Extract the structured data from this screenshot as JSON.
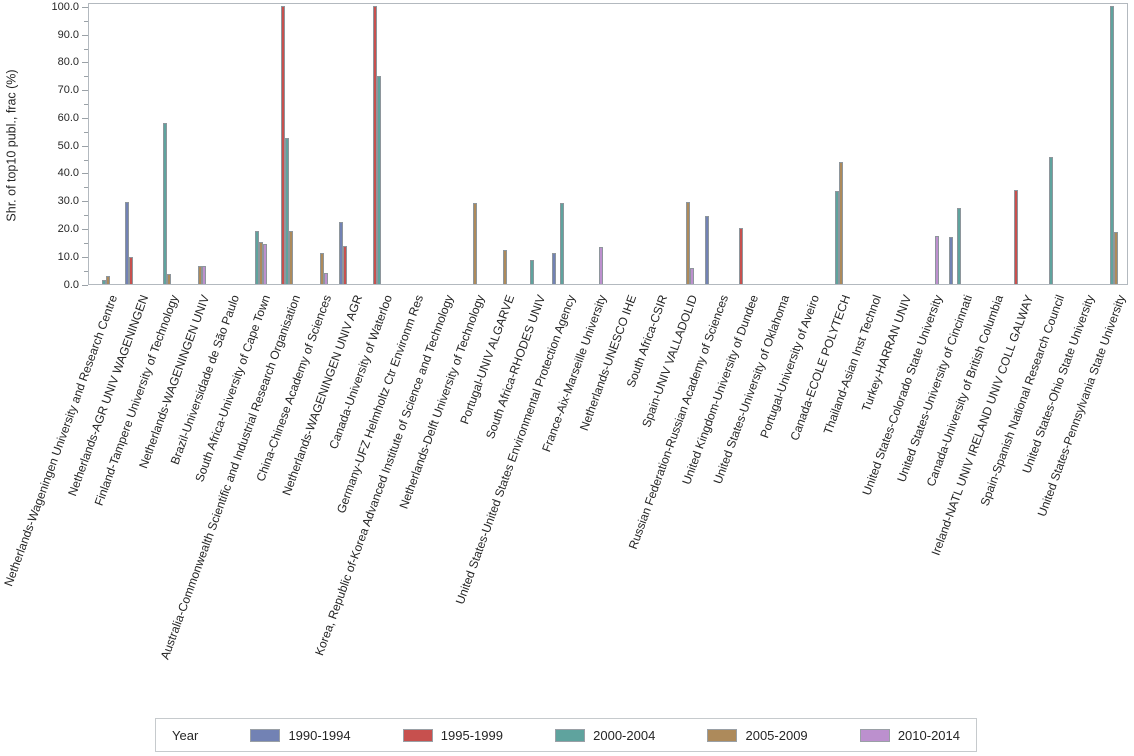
{
  "chart_data": {
    "type": "bar",
    "title": "",
    "ylabel": "Shr. of top10 publ., frac (%)",
    "xlabel": "",
    "ylim": [
      0,
      100
    ],
    "ytick_labels": [
      "0.0",
      "10.0",
      "20.0",
      "30.0",
      "40.0",
      "50.0",
      "60.0",
      "70.0",
      "80.0",
      "90.0",
      "100.0"
    ],
    "grid": false,
    "legend_position": "bottom",
    "legend_title": "Year",
    "categories": [
      "Netherlands-Wageningen University and Research Centre",
      "Netherlands-AGR UNIV WAGENINGEN",
      "Finland-Tampere University of Technology",
      "Netherlands-WAGENINGEN UNIV",
      "Brazil-Universidade de São Paulo",
      "South Africa-University of Cape Town",
      "Australia-Commonwealth Scientific and Industrial Research Organisation",
      "China-Chinese Academy of Sciences",
      "Netherlands-WAGENINGEN UNIV AGR",
      "Canada-University of Waterloo",
      "Germany-UFZ Helmholtz Ctr Environm Res",
      "Korea, Republic of-Korea Advanced Institute of Science and Technology",
      "Netherlands-Delft University of Technology",
      "Portugal-UNIV ALGARVE",
      "South Africa-RHODES UNIV",
      "United States-United States Environmental Protection Agency",
      "France-Aix-Marseille University",
      "Netherlands-UNESCO IHE",
      "South Africa-CSIR",
      "Spain-UNIV VALLADOLID",
      "Russian Federation-Russian Academy of Sciences",
      "United Kingdom-University of Dundee",
      "United States-University of Oklahoma",
      "Portugal-University of Aveiro",
      "Canada-ECOLE POLYTECH",
      "Thailand-Asian Inst Technol",
      "Turkey-HARRAN UNIV",
      "United States-Colorado State University",
      "United States-University of Cincinnati",
      "Canada-University of British Columbia",
      "Ireland-NATL UNIV IRELAND UNIV COLL GALWAY",
      "Spain-Spanish National Research Council",
      "United States-Ohio State University",
      "United States-Pennsylvania State University"
    ],
    "series": [
      {
        "name": "1990-1994",
        "color": "#7282B4",
        "values": [
          null,
          29.6,
          null,
          null,
          null,
          null,
          null,
          null,
          22.4,
          null,
          null,
          null,
          null,
          null,
          null,
          11.1,
          null,
          null,
          null,
          null,
          24.5,
          null,
          null,
          null,
          null,
          null,
          null,
          null,
          17.0,
          null,
          null,
          null,
          null,
          null
        ]
      },
      {
        "name": "1995-1999",
        "color": "#C7504E",
        "values": [
          null,
          9.8,
          null,
          null,
          null,
          null,
          100,
          null,
          13.8,
          100,
          null,
          null,
          null,
          null,
          null,
          null,
          null,
          null,
          null,
          null,
          null,
          20.2,
          null,
          null,
          null,
          null,
          null,
          null,
          null,
          null,
          34.0,
          null,
          null,
          null
        ]
      },
      {
        "name": "2000-2004",
        "color": "#5FA39E",
        "values": [
          1.3,
          null,
          58.0,
          null,
          null,
          19.1,
          52.6,
          null,
          null,
          75.0,
          null,
          null,
          null,
          null,
          8.6,
          29.1,
          null,
          null,
          null,
          null,
          null,
          null,
          null,
          null,
          33.6,
          null,
          null,
          null,
          27.3,
          null,
          null,
          45.7,
          null,
          100
        ]
      },
      {
        "name": "2005-2009",
        "color": "#AD8A5B",
        "values": [
          2.9,
          null,
          3.6,
          6.5,
          null,
          15.3,
          19.1,
          11.2,
          null,
          null,
          null,
          null,
          29.2,
          12.2,
          null,
          null,
          null,
          null,
          null,
          29.5,
          null,
          null,
          null,
          null,
          44.0,
          null,
          null,
          null,
          null,
          null,
          null,
          null,
          null,
          18.7
        ]
      },
      {
        "name": "2010-2014",
        "color": "#BC90CE",
        "values": [
          null,
          null,
          null,
          6.5,
          null,
          14.4,
          null,
          4.0,
          null,
          null,
          null,
          null,
          null,
          null,
          null,
          null,
          13.3,
          null,
          null,
          5.8,
          null,
          null,
          null,
          null,
          null,
          null,
          null,
          17.4,
          null,
          null,
          null,
          null,
          null,
          null
        ]
      }
    ],
    "colors": {
      "frame": "#b3b9bf",
      "tick": "#9aa1a7",
      "text": "#262626",
      "bar_outline": "#8e969c",
      "background": "#ffffff"
    }
  }
}
